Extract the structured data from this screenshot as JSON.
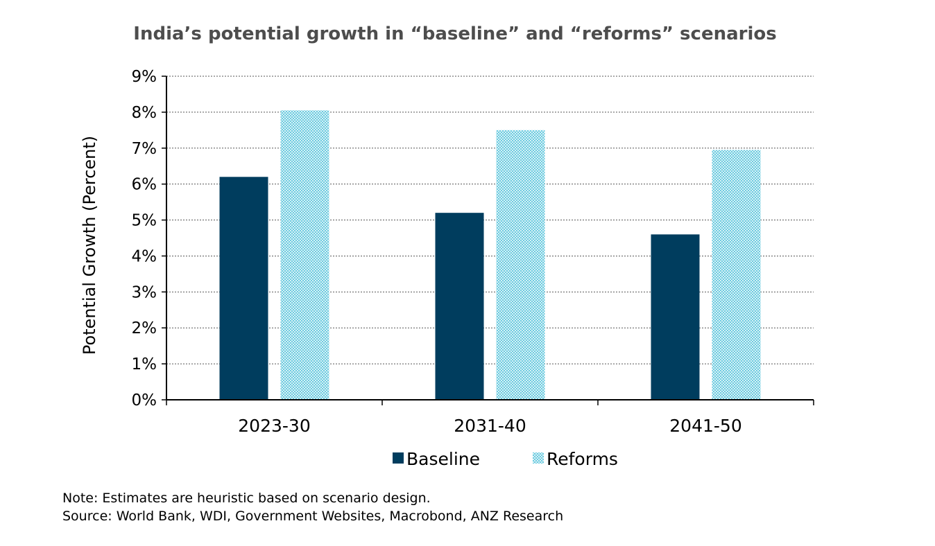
{
  "chart_data": {
    "type": "bar",
    "title": "India’s potential growth in “baseline” and “reforms” scenarios",
    "ylabel": "Potential Growth  (Percent)",
    "xlabel": "",
    "categories": [
      "2023-30",
      "2031-40",
      "2041-50"
    ],
    "series": [
      {
        "name": "Baseline",
        "values": [
          6.2,
          5.2,
          4.6
        ],
        "color": "#003d5e",
        "pattern": "solid"
      },
      {
        "name": "Reforms",
        "values": [
          8.05,
          7.5,
          6.95
        ],
        "color": "#7fd0e0",
        "pattern": "checker"
      }
    ],
    "ylim": [
      0,
      9
    ],
    "yticks": [
      0,
      1,
      2,
      3,
      4,
      5,
      6,
      7,
      8,
      9
    ],
    "ytick_labels": [
      "0%",
      "1%",
      "2%",
      "3%",
      "4%",
      "5%",
      "6%",
      "7%",
      "8%",
      "9%"
    ],
    "grid": true,
    "legend": "bottom-center"
  },
  "notes": {
    "note": "Note: Estimates are heuristic based on scenario design.",
    "source": "Source: World Bank, WDI, Government Websites, Macrobond, ANZ Research"
  }
}
